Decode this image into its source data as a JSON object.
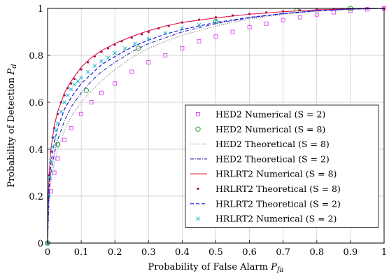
{
  "chart_data": {
    "type": "line",
    "xlabel": "Probability of False Alarm P_fa",
    "ylabel": "Probability of Detection P_d",
    "xlim": [
      0,
      1
    ],
    "ylim": [
      0,
      1
    ],
    "xticks": [
      "0",
      "0.1",
      "0.2",
      "0.3",
      "0.4",
      "0.5",
      "0.6",
      "0.7",
      "0.8",
      "0.9",
      "1"
    ],
    "yticks": [
      "0",
      "0.2",
      "0.4",
      "0.6",
      "0.8",
      "1"
    ],
    "grid": true,
    "legend_position": "lower-right",
    "series": [
      {
        "name": "HED2 Numerical (S = 2)",
        "style": "markers-square",
        "color": "#d946ef",
        "x": [
          0,
          0.01,
          0.02,
          0.03,
          0.05,
          0.07,
          0.1,
          0.13,
          0.16,
          0.2,
          0.25,
          0.3,
          0.35,
          0.4,
          0.45,
          0.5,
          0.55,
          0.6,
          0.65,
          0.7,
          0.75,
          0.8,
          0.85,
          0.9,
          0.95,
          1
        ],
        "y": [
          0,
          0.22,
          0.3,
          0.36,
          0.44,
          0.49,
          0.55,
          0.6,
          0.64,
          0.68,
          0.73,
          0.77,
          0.8,
          0.83,
          0.86,
          0.88,
          0.9,
          0.92,
          0.935,
          0.95,
          0.962,
          0.974,
          0.983,
          0.99,
          0.996,
          1
        ]
      },
      {
        "name": "HED2 Numerical (S = 8)",
        "style": "markers-circle",
        "color": "#22a022",
        "x": [
          0,
          0.03,
          0.115,
          0.27,
          0.5,
          0.74,
          0.9
        ],
        "y": [
          0,
          0.42,
          0.65,
          0.83,
          0.945,
          0.99,
          1.0
        ]
      },
      {
        "name": "HED2 Theoretical (S = 8)",
        "style": "dotted",
        "color": "#777777",
        "x": [
          0,
          0.005,
          0.01,
          0.02,
          0.03,
          0.05,
          0.07,
          0.1,
          0.13,
          0.16,
          0.2,
          0.25,
          0.3,
          0.35,
          0.4,
          0.5,
          0.6,
          0.7,
          0.8,
          0.9,
          1
        ],
        "y": [
          0,
          0.2,
          0.26,
          0.34,
          0.4,
          0.48,
          0.54,
          0.6,
          0.65,
          0.69,
          0.74,
          0.79,
          0.83,
          0.86,
          0.885,
          0.925,
          0.955,
          0.975,
          0.988,
          0.996,
          1
        ]
      },
      {
        "name": "HED2 Theoretical (S = 2)",
        "style": "dashdot",
        "color": "#3b3bb8",
        "x": [
          0,
          0.005,
          0.01,
          0.02,
          0.03,
          0.05,
          0.07,
          0.1,
          0.13,
          0.16,
          0.2,
          0.25,
          0.3,
          0.35,
          0.4,
          0.5,
          0.6,
          0.7,
          0.8,
          0.9,
          1
        ],
        "y": [
          0,
          0.23,
          0.3,
          0.38,
          0.44,
          0.52,
          0.58,
          0.64,
          0.69,
          0.73,
          0.77,
          0.815,
          0.85,
          0.875,
          0.9,
          0.935,
          0.96,
          0.978,
          0.99,
          0.997,
          1
        ]
      },
      {
        "name": "HRLRT2 Numerical (S = 8)",
        "style": "solid",
        "color": "#e0143c",
        "x": [
          0,
          0.002,
          0.005,
          0.01,
          0.02,
          0.03,
          0.05,
          0.07,
          0.1,
          0.13,
          0.16,
          0.2,
          0.25,
          0.3,
          0.35,
          0.4,
          0.5,
          0.6,
          0.7,
          0.8,
          0.9,
          1
        ],
        "y": [
          0,
          0.2,
          0.3,
          0.4,
          0.5,
          0.56,
          0.64,
          0.69,
          0.75,
          0.79,
          0.82,
          0.85,
          0.88,
          0.905,
          0.925,
          0.94,
          0.96,
          0.975,
          0.986,
          0.994,
          0.998,
          1
        ]
      },
      {
        "name": "HRLRT2 Theoretical (S = 8)",
        "style": "markers-dot",
        "color": "#a3125a",
        "x": [
          0,
          0.002,
          0.005,
          0.01,
          0.015,
          0.02,
          0.03,
          0.04,
          0.05,
          0.06,
          0.07,
          0.08,
          0.1,
          0.12,
          0.14,
          0.16,
          0.18,
          0.2,
          0.22,
          0.25,
          0.28,
          0.3,
          0.33,
          0.36,
          0.4,
          0.45,
          0.5,
          0.55,
          0.6,
          0.65,
          0.7,
          0.75,
          0.8,
          0.85,
          0.9,
          0.95,
          1
        ],
        "y": [
          0,
          0.19,
          0.29,
          0.39,
          0.45,
          0.49,
          0.55,
          0.6,
          0.63,
          0.66,
          0.68,
          0.7,
          0.74,
          0.77,
          0.795,
          0.815,
          0.83,
          0.845,
          0.86,
          0.875,
          0.89,
          0.9,
          0.915,
          0.925,
          0.94,
          0.952,
          0.962,
          0.97,
          0.977,
          0.983,
          0.988,
          0.992,
          0.995,
          0.997,
          0.999,
          1,
          1
        ]
      },
      {
        "name": "HRLRT2 Theoretical (S = 2)",
        "style": "dashed",
        "color": "#1414e6",
        "x": [
          0,
          0.002,
          0.005,
          0.01,
          0.02,
          0.03,
          0.05,
          0.07,
          0.1,
          0.13,
          0.16,
          0.2,
          0.25,
          0.3,
          0.35,
          0.4,
          0.5,
          0.6,
          0.7,
          0.8,
          0.9,
          1
        ],
        "y": [
          0,
          0.16,
          0.25,
          0.34,
          0.43,
          0.49,
          0.57,
          0.62,
          0.68,
          0.72,
          0.76,
          0.795,
          0.835,
          0.865,
          0.89,
          0.91,
          0.94,
          0.962,
          0.978,
          0.99,
          0.997,
          1
        ]
      },
      {
        "name": "HRLRT2 Numerical (S = 2)",
        "style": "markers-x",
        "color": "#17b8c8",
        "x": [
          0,
          0.003,
          0.006,
          0.01,
          0.015,
          0.02,
          0.025,
          0.03,
          0.04,
          0.05,
          0.06,
          0.07,
          0.08,
          0.09,
          0.1,
          0.12,
          0.14,
          0.16,
          0.18,
          0.2,
          0.23,
          0.26,
          0.3,
          0.35,
          0.4,
          0.45,
          0.5
        ],
        "y": [
          0,
          0.2,
          0.28,
          0.35,
          0.41,
          0.45,
          0.48,
          0.51,
          0.56,
          0.6,
          0.63,
          0.655,
          0.675,
          0.69,
          0.705,
          0.73,
          0.755,
          0.775,
          0.79,
          0.81,
          0.83,
          0.85,
          0.87,
          0.895,
          0.915,
          0.93,
          0.945
        ]
      }
    ]
  }
}
